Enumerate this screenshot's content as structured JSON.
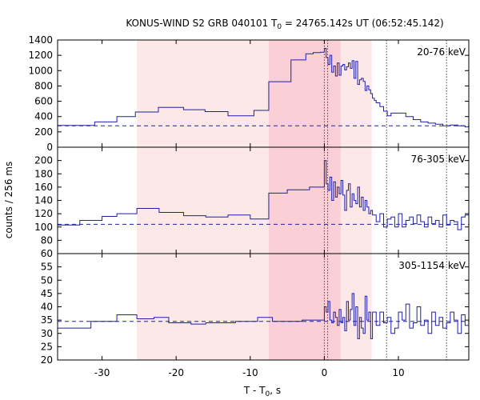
{
  "chart_data": {
    "type": "line",
    "title": {
      "prefix": "KONUS-WIND S2 GRB 040101 T",
      "sub": "0",
      "suffix": " = 24765.142s UT (06:52:45.142)"
    },
    "xlabel": {
      "prefix": "T - T",
      "sub": "0",
      "suffix": ", s"
    },
    "ylabel": "counts / 256 ms",
    "xlim": [
      -36,
      19.5
    ],
    "x_ticks": [
      -30,
      -20,
      -10,
      0,
      10
    ],
    "shaded_regions": [
      {
        "x0": -25.3,
        "x1": 6.4,
        "color": "#fde8e8"
      },
      {
        "x0": -7.5,
        "x1": 2.2,
        "color": "#fad0d6"
      }
    ],
    "vertical_markers": [
      0.0,
      0.45,
      8.4,
      16.5
    ],
    "line_color": "#1f1fa8",
    "panels": [
      {
        "label": "20-76 keV",
        "ylim": [
          0,
          1400
        ],
        "y_ticks": [
          0,
          200,
          400,
          600,
          800,
          1000,
          1200,
          1400
        ],
        "background": 280,
        "step_x": [
          -36,
          -31,
          -28,
          -25.5,
          -22.4,
          -19,
          -16.1,
          -13,
          -9.5,
          -7.5,
          -4.5,
          -2.5,
          -1.5,
          -0.5,
          0,
          0.25,
          0.5,
          0.75,
          1,
          1.25,
          1.5,
          1.75,
          2,
          2.25,
          2.5,
          2.75,
          3,
          3.25,
          3.5,
          3.75,
          4,
          4.25,
          4.5,
          4.75,
          5,
          5.25,
          5.5,
          5.75,
          6,
          6.25,
          6.5,
          6.75,
          7,
          7.5,
          8,
          8.5,
          9,
          10,
          11,
          12,
          13,
          14,
          15,
          16,
          17,
          18,
          19,
          19.5
        ],
        "step_y": [
          285,
          330,
          400,
          460,
          520,
          490,
          465,
          410,
          480,
          855,
          1140,
          1220,
          1235,
          1240,
          1290,
          1170,
          1080,
          1200,
          980,
          1060,
          930,
          1100,
          940,
          1060,
          1080,
          1010,
          1050,
          1100,
          1030,
          1130,
          900,
          1120,
          820,
          880,
          900,
          860,
          740,
          800,
          750,
          700,
          640,
          610,
          580,
          530,
          470,
          410,
          445,
          445,
          400,
          360,
          330,
          315,
          300,
          280,
          290,
          280,
          265
        ]
      },
      {
        "label": "76-305 keV",
        "ylim": [
          60,
          220
        ],
        "y_ticks": [
          60,
          80,
          100,
          120,
          140,
          160,
          180,
          200
        ],
        "background": 104,
        "step_x": [
          -36,
          -33,
          -30,
          -28,
          -25.3,
          -22.3,
          -19,
          -16,
          -13,
          -10,
          -7.5,
          -5,
          -2,
          0,
          0.25,
          0.5,
          0.75,
          1,
          1.25,
          1.5,
          1.75,
          2,
          2.25,
          2.5,
          2.75,
          3,
          3.25,
          3.5,
          3.75,
          4,
          4.25,
          4.5,
          4.75,
          5,
          5.25,
          5.5,
          5.75,
          6,
          6.25,
          6.5,
          7,
          7.5,
          8,
          8.5,
          9,
          9.5,
          10,
          10.5,
          11,
          11.5,
          12,
          12.5,
          13,
          13.5,
          14,
          14.5,
          15,
          15.5,
          16,
          16.5,
          17,
          17.5,
          18,
          18.5,
          19,
          19.5
        ],
        "step_y": [
          103,
          110,
          116,
          120,
          128,
          122,
          117,
          115,
          118,
          112,
          151,
          156,
          160,
          200,
          165,
          155,
          175,
          140,
          168,
          145,
          160,
          150,
          170,
          148,
          125,
          155,
          165,
          130,
          150,
          140,
          135,
          160,
          130,
          145,
          125,
          140,
          130,
          120,
          125,
          118,
          108,
          120,
          100,
          112,
          115,
          100,
          120,
          100,
          110,
          115,
          105,
          118,
          108,
          100,
          115,
          105,
          110,
          100,
          118,
          103,
          110,
          108,
          96,
          115,
          118
        ]
      },
      {
        "label": "305-1154 keV",
        "ylim": [
          20,
          60
        ],
        "y_ticks": [
          20,
          25,
          30,
          35,
          40,
          45,
          50,
          55
        ],
        "background": 34.5,
        "step_x": [
          -36,
          -31.5,
          -28,
          -25.3,
          -23,
          -21,
          -18,
          -16,
          -12,
          -9,
          -7,
          -3,
          0,
          0.25,
          0.5,
          0.75,
          1,
          1.25,
          1.5,
          1.75,
          2,
          2.25,
          2.5,
          2.75,
          3,
          3.25,
          3.5,
          3.75,
          4,
          4.25,
          4.5,
          4.75,
          5,
          5.25,
          5.5,
          5.75,
          6,
          6.25,
          6.5,
          7,
          7.5,
          8,
          8.5,
          9,
          9.5,
          10,
          10.5,
          11,
          11.5,
          12,
          12.5,
          13,
          13.5,
          14,
          14.5,
          15,
          15.5,
          16,
          16.5,
          17,
          17.5,
          18,
          18.5,
          19,
          19.5
        ],
        "step_y": [
          32,
          34.5,
          37,
          35.5,
          36,
          34,
          33.5,
          34,
          34.5,
          36,
          34.5,
          35,
          40,
          38,
          42,
          35,
          34,
          38,
          36,
          33,
          39,
          34,
          36,
          31,
          42,
          35,
          39,
          45,
          33,
          40,
          28,
          36,
          32,
          30,
          44,
          35,
          38,
          28,
          38,
          33,
          38,
          34,
          36,
          30,
          32,
          38,
          35,
          41,
          32,
          34,
          40,
          33,
          35,
          30,
          38,
          33,
          36,
          32,
          34,
          38,
          35,
          30,
          37,
          33,
          35
        ]
      }
    ]
  }
}
